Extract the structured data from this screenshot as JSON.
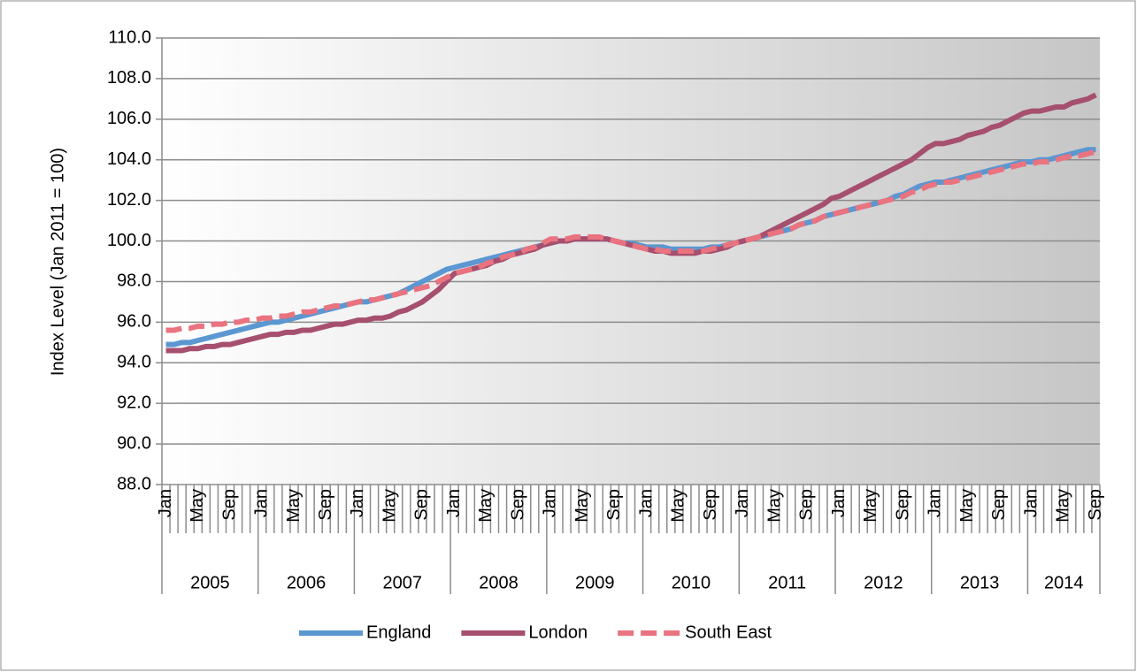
{
  "chart_data": {
    "type": "line",
    "y_label": "Index Level (Jan 2011 = 100)",
    "categories": [
      "Jan",
      null,
      null,
      null,
      "May",
      null,
      null,
      null,
      "Sep",
      null,
      null,
      null,
      "Jan",
      null,
      null,
      null,
      "May",
      null,
      null,
      null,
      "Sep",
      null,
      null,
      null,
      "Jan",
      null,
      null,
      null,
      "May",
      null,
      null,
      null,
      "Sep",
      null,
      null,
      null,
      "Jan",
      null,
      null,
      null,
      "May",
      null,
      null,
      null,
      "Sep",
      null,
      null,
      null,
      "Jan",
      null,
      null,
      null,
      "May",
      null,
      null,
      null,
      "Sep",
      null,
      null,
      null,
      "Jan",
      null,
      null,
      null,
      "May",
      null,
      null,
      null,
      "Sep",
      null,
      null,
      null,
      "Jan",
      null,
      null,
      null,
      "May",
      null,
      null,
      null,
      "Sep",
      null,
      null,
      null,
      "Jan",
      null,
      null,
      null,
      "May",
      null,
      null,
      null,
      "Sep",
      null,
      null,
      null,
      "Jan",
      null,
      null,
      null,
      "May",
      null,
      null,
      null,
      "Sep",
      null,
      null,
      null,
      "Jan",
      null,
      null,
      null,
      "May",
      null,
      null,
      null,
      "Sep"
    ],
    "x_groups": [
      "2005",
      "2006",
      "2007",
      "2008",
      "2009",
      "2010",
      "2011",
      "2012",
      "2013",
      "2014"
    ],
    "series": [
      {
        "name": "England",
        "color": "#5b97d1",
        "dashed": false,
        "values": [
          94.9,
          94.9,
          95.0,
          95.0,
          95.1,
          95.2,
          95.3,
          95.4,
          95.5,
          95.6,
          95.7,
          95.8,
          95.9,
          96.0,
          96.0,
          96.1,
          96.2,
          96.3,
          96.4,
          96.5,
          96.6,
          96.7,
          96.8,
          96.9,
          97.0,
          97.0,
          97.1,
          97.2,
          97.3,
          97.4,
          97.6,
          97.8,
          98.0,
          98.2,
          98.4,
          98.6,
          98.7,
          98.8,
          98.9,
          99.0,
          99.1,
          99.2,
          99.3,
          99.4,
          99.5,
          99.6,
          99.7,
          99.8,
          99.9,
          100.0,
          100.0,
          100.1,
          100.1,
          100.1,
          100.1,
          100.1,
          100.0,
          99.9,
          99.9,
          99.8,
          99.7,
          99.7,
          99.7,
          99.6,
          99.6,
          99.6,
          99.6,
          99.6,
          99.7,
          99.7,
          99.8,
          99.9,
          100.0,
          100.1,
          100.2,
          100.3,
          100.4,
          100.5,
          100.6,
          100.8,
          100.9,
          101.0,
          101.2,
          101.3,
          101.4,
          101.5,
          101.6,
          101.7,
          101.8,
          101.9,
          102.0,
          102.2,
          102.3,
          102.5,
          102.7,
          102.8,
          102.9,
          102.9,
          103.0,
          103.1,
          103.2,
          103.3,
          103.4,
          103.5,
          103.6,
          103.7,
          103.8,
          103.9,
          103.9,
          104.0,
          104.0,
          104.1,
          104.2,
          104.3,
          104.4,
          104.5,
          104.5
        ]
      },
      {
        "name": "London",
        "color": "#a64f6f",
        "dashed": false,
        "values": [
          94.6,
          94.6,
          94.6,
          94.7,
          94.7,
          94.8,
          94.8,
          94.9,
          94.9,
          95.0,
          95.1,
          95.2,
          95.3,
          95.4,
          95.4,
          95.5,
          95.5,
          95.6,
          95.6,
          95.7,
          95.8,
          95.9,
          95.9,
          96.0,
          96.1,
          96.1,
          96.2,
          96.2,
          96.3,
          96.5,
          96.6,
          96.8,
          97.0,
          97.3,
          97.6,
          98.0,
          98.4,
          98.5,
          98.6,
          98.7,
          98.8,
          99.0,
          99.1,
          99.3,
          99.4,
          99.5,
          99.6,
          99.8,
          99.9,
          100.0,
          100.0,
          100.1,
          100.1,
          100.1,
          100.1,
          100.1,
          100.0,
          99.9,
          99.8,
          99.7,
          99.6,
          99.5,
          99.5,
          99.4,
          99.4,
          99.4,
          99.4,
          99.5,
          99.5,
          99.6,
          99.7,
          99.9,
          100.0,
          100.1,
          100.2,
          100.4,
          100.6,
          100.8,
          101.0,
          101.2,
          101.4,
          101.6,
          101.8,
          102.1,
          102.2,
          102.4,
          102.6,
          102.8,
          103.0,
          103.2,
          103.4,
          103.6,
          103.8,
          104.0,
          104.3,
          104.6,
          104.8,
          104.8,
          104.9,
          105.0,
          105.2,
          105.3,
          105.4,
          105.6,
          105.7,
          105.9,
          106.1,
          106.3,
          106.4,
          106.4,
          106.5,
          106.6,
          106.6,
          106.8,
          106.9,
          107.0,
          107.2
        ]
      },
      {
        "name": "South East",
        "color": "#e9737f",
        "dashed": true,
        "values": [
          95.6,
          95.6,
          95.7,
          95.7,
          95.8,
          95.8,
          95.9,
          95.9,
          96.0,
          96.0,
          96.1,
          96.1,
          96.2,
          96.2,
          96.3,
          96.3,
          96.4,
          96.5,
          96.5,
          96.6,
          96.7,
          96.8,
          96.8,
          96.9,
          97.0,
          97.1,
          97.1,
          97.2,
          97.3,
          97.4,
          97.5,
          97.6,
          97.7,
          97.8,
          98.0,
          98.2,
          98.4,
          98.5,
          98.6,
          98.7,
          98.9,
          99.0,
          99.2,
          99.3,
          99.4,
          99.6,
          99.7,
          99.9,
          100.1,
          100.1,
          100.1,
          100.2,
          100.2,
          100.2,
          100.2,
          100.1,
          100.0,
          99.9,
          99.8,
          99.7,
          99.6,
          99.6,
          99.5,
          99.5,
          99.5,
          99.5,
          99.5,
          99.5,
          99.6,
          99.7,
          99.8,
          99.9,
          100.0,
          100.1,
          100.2,
          100.3,
          100.4,
          100.5,
          100.6,
          100.8,
          100.9,
          101.0,
          101.2,
          101.3,
          101.4,
          101.5,
          101.6,
          101.7,
          101.8,
          101.9,
          102.0,
          102.1,
          102.2,
          102.4,
          102.5,
          102.7,
          102.8,
          102.9,
          102.9,
          103.0,
          103.1,
          103.2,
          103.3,
          103.4,
          103.5,
          103.6,
          103.7,
          103.8,
          103.8,
          103.9,
          103.9,
          104.0,
          104.1,
          104.2,
          104.2,
          104.3,
          104.4
        ]
      }
    ],
    "ylim": [
      88,
      110
    ],
    "yticks": [
      {
        "value": 88,
        "label": "88.0"
      },
      {
        "value": 90,
        "label": "90.0"
      },
      {
        "value": 92,
        "label": "92.0"
      },
      {
        "value": 94,
        "label": "94.0"
      },
      {
        "value": 96,
        "label": "96.0"
      },
      {
        "value": 98,
        "label": "98.0"
      },
      {
        "value": 100,
        "label": "100.0"
      },
      {
        "value": 102,
        "label": "102.0"
      },
      {
        "value": 104,
        "label": "104.0"
      },
      {
        "value": 106,
        "label": "106.0"
      },
      {
        "value": 108,
        "label": "108.0"
      },
      {
        "value": 110,
        "label": "110.0"
      }
    ],
    "grid": true,
    "legend": "bottom"
  }
}
